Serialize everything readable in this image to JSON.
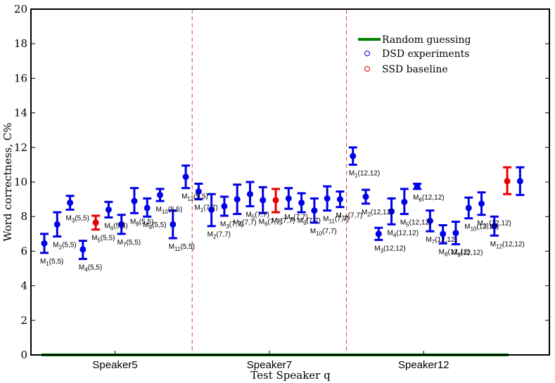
{
  "chart_data": {
    "type": "scatter",
    "title": "",
    "xlabel": "Test Speaker q",
    "ylabel": "Word correctness, C%",
    "ylim": [
      0,
      20
    ],
    "yticks": [
      "0",
      "2",
      "4",
      "6",
      "8",
      "10",
      "12",
      "14",
      "16",
      "18",
      "20"
    ],
    "categories": [
      "Speaker5",
      "Speaker7",
      "Speaker12"
    ],
    "legend": {
      "random": "Random guessing",
      "dsd": "DSD experiments",
      "ssd": "SSD baseline"
    },
    "random_guessing_value": 0,
    "colors": {
      "dsd": "#0000e6",
      "ssd": "#e60000",
      "random": "#008000",
      "divider": "#e04040"
    },
    "points": [
      {
        "x": 1,
        "mean": 6.45,
        "lo": 5.9,
        "hi": 7.0,
        "kind": "dsd",
        "label": "M1(5,5)"
      },
      {
        "x": 2,
        "mean": 7.55,
        "lo": 6.85,
        "hi": 8.25,
        "kind": "dsd",
        "label": "M2(5,5)"
      },
      {
        "x": 3,
        "mean": 8.8,
        "lo": 8.4,
        "hi": 9.2,
        "kind": "dsd",
        "label": "M3(5,5)"
      },
      {
        "x": 4,
        "mean": 6.1,
        "lo": 5.55,
        "hi": 6.6,
        "kind": "dsd",
        "label": "M4(5,5)"
      },
      {
        "x": 5,
        "mean": 7.65,
        "lo": 7.25,
        "hi": 8.05,
        "kind": "ssd",
        "label": "M5(5,5)"
      },
      {
        "x": 6,
        "mean": 8.4,
        "lo": 7.95,
        "hi": 8.85,
        "kind": "dsd",
        "label": "M6(5,5)"
      },
      {
        "x": 7,
        "mean": 7.55,
        "lo": 7.0,
        "hi": 8.1,
        "kind": "dsd",
        "label": "M7(5,5)"
      },
      {
        "x": 8,
        "mean": 8.9,
        "lo": 8.2,
        "hi": 9.65,
        "kind": "dsd",
        "label": "M8(5,5)"
      },
      {
        "x": 9,
        "mean": 8.5,
        "lo": 8.0,
        "hi": 9.05,
        "kind": "dsd",
        "label": "M9(5,5)"
      },
      {
        "x": 10,
        "mean": 9.25,
        "lo": 8.9,
        "hi": 9.6,
        "kind": "dsd",
        "label": "M10(5,5)"
      },
      {
        "x": 11,
        "mean": 7.55,
        "lo": 6.75,
        "hi": 8.35,
        "kind": "dsd",
        "label": "M11(5,5)"
      },
      {
        "x": 12,
        "mean": 10.3,
        "lo": 9.65,
        "hi": 10.95,
        "kind": "dsd",
        "label": "M12(5,5)"
      },
      {
        "x": 13,
        "mean": 9.45,
        "lo": 9.0,
        "hi": 9.9,
        "kind": "dsd",
        "label": "M1(7,7)"
      },
      {
        "x": 14,
        "mean": 8.4,
        "lo": 7.45,
        "hi": 9.3,
        "kind": "dsd",
        "label": "M2(7,7)"
      },
      {
        "x": 15,
        "mean": 8.6,
        "lo": 8.05,
        "hi": 9.15,
        "kind": "dsd",
        "label": "M3(7,7)"
      },
      {
        "x": 16,
        "mean": 9.0,
        "lo": 8.15,
        "hi": 9.85,
        "kind": "dsd",
        "label": "M4(7,7)"
      },
      {
        "x": 17,
        "mean": 9.3,
        "lo": 8.6,
        "hi": 10.0,
        "kind": "dsd",
        "label": "M5(7,7)"
      },
      {
        "x": 18,
        "mean": 8.95,
        "lo": 8.2,
        "hi": 9.7,
        "kind": "dsd",
        "label": "M6(7,7)"
      },
      {
        "x": 19,
        "mean": 8.95,
        "lo": 8.25,
        "hi": 9.6,
        "kind": "ssd",
        "label": "M7(7,7)"
      },
      {
        "x": 20,
        "mean": 9.05,
        "lo": 8.45,
        "hi": 9.65,
        "kind": "dsd",
        "label": "M8(7,7)"
      },
      {
        "x": 21,
        "mean": 8.8,
        "lo": 8.25,
        "hi": 9.35,
        "kind": "dsd",
        "label": "M9(7,7)"
      },
      {
        "x": 22,
        "mean": 8.35,
        "lo": 7.65,
        "hi": 9.05,
        "kind": "dsd",
        "label": "M10(7,7)"
      },
      {
        "x": 23,
        "mean": 9.05,
        "lo": 8.35,
        "hi": 9.75,
        "kind": "dsd",
        "label": "M11(7,7)"
      },
      {
        "x": 24,
        "mean": 9.0,
        "lo": 8.55,
        "hi": 9.45,
        "kind": "dsd",
        "label": "M12(7,7)"
      },
      {
        "x": 25,
        "mean": 11.5,
        "lo": 11.0,
        "hi": 12.0,
        "kind": "dsd",
        "label": "M1(12,12)"
      },
      {
        "x": 26,
        "mean": 9.15,
        "lo": 8.75,
        "hi": 9.55,
        "kind": "dsd",
        "label": "M2(12,12)"
      },
      {
        "x": 27,
        "mean": 7.0,
        "lo": 6.65,
        "hi": 7.35,
        "kind": "dsd",
        "label": "M3(12,12)"
      },
      {
        "x": 28,
        "mean": 8.3,
        "lo": 7.55,
        "hi": 9.05,
        "kind": "dsd",
        "label": "M4(12,12)"
      },
      {
        "x": 29,
        "mean": 8.85,
        "lo": 8.15,
        "hi": 9.6,
        "kind": "dsd",
        "label": "M5(12,12)"
      },
      {
        "x": 30,
        "mean": 9.75,
        "lo": 9.6,
        "hi": 9.9,
        "kind": "dsd",
        "label": "M6(12,12)"
      },
      {
        "x": 31,
        "mean": 7.75,
        "lo": 7.15,
        "hi": 8.35,
        "kind": "dsd",
        "label": "M7(12,12)"
      },
      {
        "x": 32,
        "mean": 7.0,
        "lo": 6.45,
        "hi": 7.5,
        "kind": "dsd",
        "label": "M8(12,12)"
      },
      {
        "x": 33,
        "mean": 7.05,
        "lo": 6.4,
        "hi": 7.7,
        "kind": "dsd",
        "label": "M9(12,12)"
      },
      {
        "x": 34,
        "mean": 8.5,
        "lo": 7.9,
        "hi": 9.1,
        "kind": "dsd",
        "label": "M10(12,12)"
      },
      {
        "x": 35,
        "mean": 8.75,
        "lo": 8.1,
        "hi": 9.4,
        "kind": "dsd",
        "label": "M11(12,12)"
      },
      {
        "x": 36,
        "mean": 7.45,
        "lo": 6.9,
        "hi": 8.0,
        "kind": "dsd",
        "label": "M12(12,12)"
      },
      {
        "x": 37,
        "mean": 10.05,
        "lo": 9.3,
        "hi": 10.85,
        "kind": "ssd",
        "label": ""
      },
      {
        "x": 38,
        "mean": 10.05,
        "lo": 9.25,
        "hi": 10.85,
        "kind": "dsd",
        "label": ""
      }
    ]
  }
}
